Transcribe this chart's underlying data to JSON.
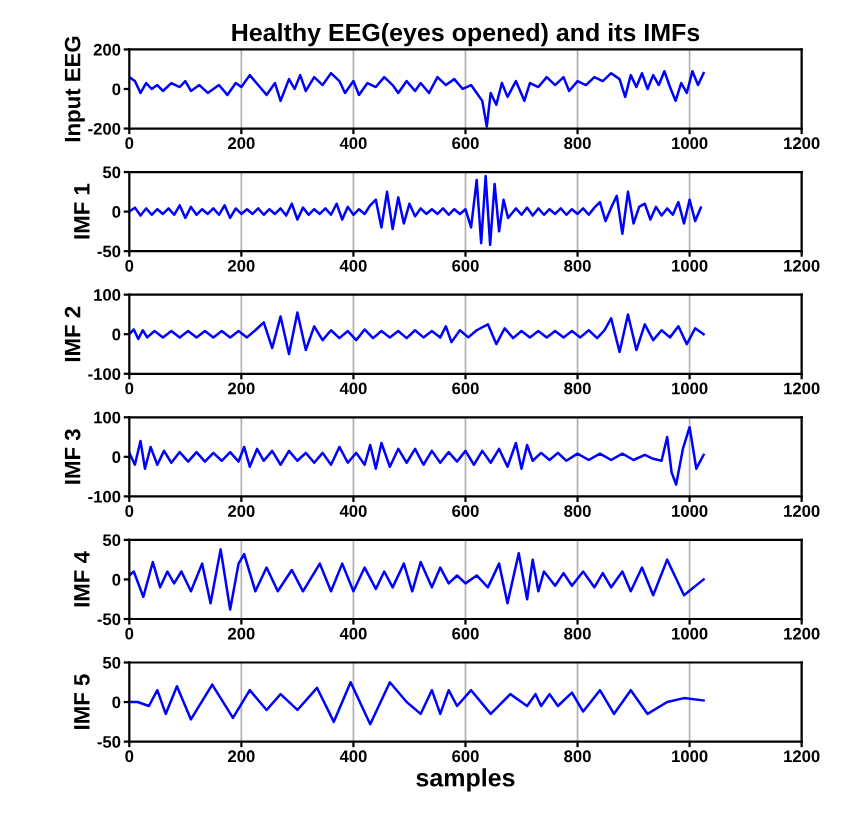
{
  "chart_data": [
    {
      "type": "line",
      "title": "Healthy EEG(eyes opened) and its IMFs",
      "ylabel": "Input EEG",
      "xlim": [
        0,
        1200
      ],
      "xticks": [
        0,
        200,
        400,
        600,
        800,
        1000,
        1200
      ],
      "ylim": [
        -200,
        200
      ],
      "yticks": [
        -200,
        0,
        200
      ],
      "grid": "x",
      "series": [
        {
          "color": "#0000ff",
          "x": [
            0,
            10,
            20,
            30,
            40,
            50,
            60,
            75,
            90,
            100,
            110,
            125,
            140,
            160,
            175,
            190,
            200,
            215,
            230,
            245,
            260,
            270,
            285,
            295,
            305,
            315,
            330,
            345,
            360,
            375,
            385,
            400,
            410,
            425,
            440,
            455,
            470,
            480,
            495,
            510,
            520,
            535,
            550,
            565,
            580,
            595,
            610,
            620,
            630,
            638,
            645,
            655,
            665,
            675,
            690,
            705,
            715,
            730,
            745,
            760,
            775,
            785,
            800,
            815,
            830,
            845,
            860,
            875,
            885,
            895,
            905,
            915,
            925,
            935,
            945,
            955,
            965,
            975,
            985,
            995,
            1005,
            1015,
            1025
          ],
          "values": [
            60,
            40,
            -20,
            30,
            0,
            20,
            -10,
            30,
            10,
            40,
            -10,
            20,
            -20,
            20,
            -30,
            30,
            10,
            70,
            20,
            -30,
            30,
            -60,
            50,
            0,
            70,
            -10,
            60,
            20,
            80,
            40,
            -20,
            40,
            -30,
            30,
            10,
            60,
            20,
            -20,
            40,
            -10,
            30,
            -20,
            60,
            20,
            50,
            0,
            20,
            -20,
            -60,
            -190,
            -20,
            -80,
            30,
            -40,
            40,
            -60,
            30,
            10,
            60,
            20,
            60,
            -10,
            40,
            20,
            60,
            40,
            80,
            50,
            -40,
            70,
            10,
            80,
            0,
            70,
            20,
            90,
            10,
            -60,
            30,
            -20,
            90,
            20,
            80
          ]
        }
      ]
    },
    {
      "type": "line",
      "ylabel": "IMF 1",
      "xlim": [
        0,
        1200
      ],
      "xticks": [
        0,
        200,
        400,
        600,
        800,
        1000,
        1200
      ],
      "ylim": [
        -50,
        50
      ],
      "yticks": [
        -50,
        0,
        50
      ],
      "grid": "x",
      "series": [
        {
          "color": "#0000ff",
          "x": [
            0,
            10,
            20,
            30,
            40,
            50,
            60,
            70,
            80,
            90,
            100,
            110,
            120,
            130,
            140,
            150,
            160,
            170,
            180,
            190,
            200,
            210,
            220,
            230,
            240,
            250,
            260,
            270,
            280,
            290,
            300,
            310,
            320,
            330,
            340,
            350,
            360,
            370,
            380,
            390,
            400,
            410,
            420,
            430,
            440,
            450,
            460,
            470,
            480,
            490,
            500,
            510,
            520,
            530,
            540,
            550,
            560,
            570,
            580,
            590,
            600,
            610,
            620,
            628,
            636,
            644,
            652,
            660,
            668,
            676,
            690,
            700,
            710,
            720,
            730,
            740,
            750,
            760,
            770,
            780,
            790,
            800,
            810,
            820,
            830,
            840,
            850,
            860,
            870,
            880,
            890,
            900,
            910,
            920,
            930,
            940,
            950,
            960,
            970,
            980,
            990,
            1000,
            1010,
            1020
          ],
          "values": [
            0,
            5,
            -5,
            4,
            -4,
            3,
            -3,
            4,
            -4,
            8,
            -8,
            6,
            -4,
            3,
            -3,
            4,
            -4,
            8,
            -8,
            4,
            -3,
            3,
            -3,
            4,
            -4,
            3,
            -3,
            4,
            -5,
            10,
            -10,
            5,
            -4,
            3,
            -3,
            4,
            -4,
            10,
            -10,
            6,
            -4,
            3,
            -3,
            8,
            15,
            -20,
            25,
            -22,
            18,
            -15,
            10,
            -6,
            4,
            -3,
            3,
            -3,
            4,
            -4,
            3,
            -3,
            3,
            -20,
            40,
            -40,
            45,
            -42,
            35,
            -25,
            15,
            -8,
            4,
            -4,
            5,
            -5,
            4,
            -4,
            3,
            -3,
            4,
            -4,
            3,
            -3,
            4,
            -4,
            5,
            12,
            -12,
            5,
            20,
            -28,
            25,
            -15,
            6,
            10,
            -10,
            6,
            -5,
            4,
            -4,
            12,
            -15,
            15,
            -12,
            5
          ]
        }
      ]
    },
    {
      "type": "line",
      "ylabel": "IMF 2",
      "xlim": [
        0,
        1200
      ],
      "xticks": [
        0,
        200,
        400,
        600,
        800,
        1000,
        1200
      ],
      "ylim": [
        -100,
        100
      ],
      "yticks": [
        -100,
        0,
        100
      ],
      "grid": "x",
      "series": [
        {
          "color": "#0000ff",
          "x": [
            0,
            8,
            16,
            24,
            32,
            45,
            60,
            75,
            90,
            105,
            120,
            135,
            150,
            165,
            180,
            195,
            210,
            225,
            240,
            255,
            270,
            285,
            300,
            315,
            330,
            345,
            360,
            375,
            390,
            405,
            420,
            435,
            450,
            465,
            480,
            495,
            510,
            525,
            540,
            555,
            565,
            575,
            590,
            605,
            620,
            640,
            655,
            670,
            685,
            700,
            715,
            730,
            745,
            760,
            775,
            790,
            805,
            820,
            835,
            848,
            860,
            875,
            890,
            905,
            920,
            935,
            950,
            965,
            980,
            995,
            1010,
            1025
          ],
          "values": [
            0,
            12,
            -12,
            10,
            -8,
            8,
            -8,
            8,
            -8,
            8,
            -8,
            8,
            -8,
            8,
            -8,
            8,
            -8,
            10,
            30,
            -35,
            45,
            -50,
            55,
            -40,
            20,
            -15,
            10,
            -10,
            8,
            -15,
            12,
            -10,
            8,
            -8,
            8,
            -10,
            10,
            -8,
            8,
            -8,
            20,
            -20,
            10,
            -8,
            10,
            25,
            -25,
            15,
            -10,
            8,
            -8,
            8,
            -8,
            8,
            -8,
            8,
            -8,
            10,
            -10,
            10,
            40,
            -45,
            50,
            -40,
            25,
            -15,
            10,
            -8,
            20,
            -25,
            15,
            0
          ]
        }
      ]
    },
    {
      "type": "line",
      "ylabel": "IMF 3",
      "xlim": [
        0,
        1200
      ],
      "xticks": [
        0,
        200,
        400,
        600,
        800,
        1000,
        1200
      ],
      "ylim": [
        -100,
        100
      ],
      "yticks": [
        -100,
        0,
        100
      ],
      "grid": "x",
      "series": [
        {
          "color": "#0000ff",
          "x": [
            0,
            10,
            20,
            28,
            38,
            50,
            62,
            75,
            90,
            105,
            120,
            135,
            150,
            165,
            180,
            195,
            205,
            215,
            228,
            240,
            255,
            270,
            285,
            300,
            315,
            330,
            345,
            360,
            375,
            390,
            405,
            420,
            430,
            440,
            450,
            465,
            480,
            495,
            510,
            525,
            540,
            555,
            570,
            585,
            600,
            615,
            630,
            645,
            660,
            675,
            690,
            700,
            710,
            720,
            735,
            750,
            765,
            780,
            800,
            820,
            840,
            860,
            880,
            900,
            920,
            935,
            950,
            960,
            968,
            976,
            988,
            1000,
            1012,
            1025
          ],
          "values": [
            10,
            -20,
            40,
            -30,
            25,
            -20,
            15,
            -15,
            12,
            -12,
            12,
            -12,
            10,
            -10,
            12,
            -12,
            25,
            -25,
            20,
            -10,
            15,
            -20,
            15,
            -10,
            10,
            -15,
            10,
            -20,
            25,
            -15,
            10,
            -20,
            30,
            -30,
            35,
            -25,
            20,
            -15,
            20,
            -20,
            15,
            -15,
            12,
            -12,
            15,
            -20,
            15,
            -15,
            20,
            -25,
            35,
            -30,
            30,
            -10,
            10,
            -8,
            10,
            -10,
            8,
            -8,
            8,
            -8,
            8,
            -8,
            5,
            -5,
            -10,
            50,
            -40,
            -70,
            20,
            75,
            -30,
            5
          ]
        }
      ]
    },
    {
      "type": "line",
      "ylabel": "IMF 4",
      "xlim": [
        0,
        1200
      ],
      "xticks": [
        0,
        200,
        400,
        600,
        800,
        1000,
        1200
      ],
      "ylim": [
        -50,
        50
      ],
      "yticks": [
        -50,
        0,
        50
      ],
      "grid": "x",
      "series": [
        {
          "color": "#0000ff",
          "x": [
            0,
            8,
            25,
            42,
            55,
            68,
            80,
            93,
            110,
            130,
            145,
            163,
            180,
            195,
            205,
            225,
            245,
            265,
            290,
            310,
            340,
            360,
            380,
            400,
            420,
            440,
            455,
            470,
            490,
            505,
            520,
            540,
            555,
            570,
            585,
            600,
            620,
            640,
            660,
            675,
            695,
            710,
            720,
            730,
            740,
            760,
            775,
            790,
            810,
            830,
            845,
            860,
            880,
            895,
            915,
            935,
            960,
            990,
            1025
          ],
          "values": [
            5,
            10,
            -22,
            22,
            -10,
            10,
            -5,
            10,
            -15,
            20,
            -30,
            38,
            -38,
            20,
            32,
            -15,
            15,
            -15,
            12,
            -15,
            20,
            -15,
            20,
            -15,
            15,
            -12,
            10,
            -10,
            20,
            -15,
            22,
            -10,
            15,
            -5,
            5,
            -5,
            5,
            -10,
            20,
            -30,
            33,
            -25,
            25,
            -15,
            10,
            -8,
            8,
            -8,
            10,
            -10,
            8,
            -10,
            10,
            -15,
            15,
            -20,
            25,
            -20,
            0
          ]
        }
      ]
    },
    {
      "type": "line",
      "ylabel": "IMF 5",
      "xlim": [
        0,
        1200
      ],
      "xticks": [
        0,
        200,
        400,
        600,
        800,
        1000,
        1200
      ],
      "ylim": [
        -50,
        50
      ],
      "yticks": [
        -50,
        0,
        50
      ],
      "grid": "x",
      "xlabel": "samples",
      "series": [
        {
          "color": "#0000ff",
          "x": [
            0,
            15,
            35,
            50,
            65,
            85,
            110,
            148,
            185,
            215,
            245,
            270,
            300,
            335,
            365,
            395,
            430,
            465,
            495,
            520,
            540,
            555,
            570,
            585,
            610,
            645,
            680,
            710,
            725,
            735,
            750,
            765,
            790,
            810,
            840,
            865,
            895,
            925,
            960,
            990,
            1025
          ],
          "values": [
            0,
            0,
            -5,
            15,
            -15,
            20,
            -22,
            22,
            -20,
            15,
            -10,
            10,
            -10,
            18,
            -25,
            25,
            -28,
            25,
            0,
            -15,
            15,
            -15,
            15,
            -5,
            15,
            -15,
            10,
            -5,
            10,
            -5,
            10,
            -5,
            12,
            -12,
            15,
            -15,
            15,
            -15,
            0,
            5,
            2
          ]
        }
      ]
    }
  ]
}
